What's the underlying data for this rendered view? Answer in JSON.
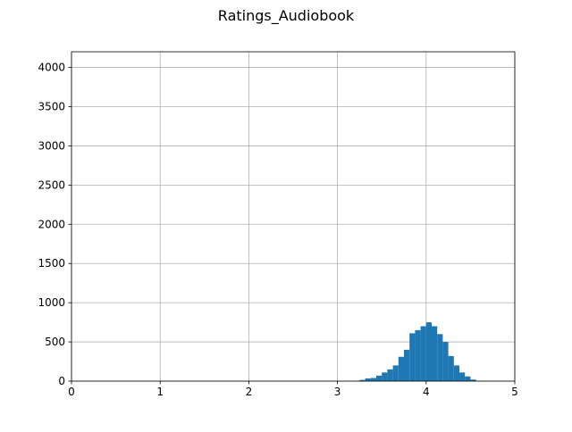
{
  "chart_data": {
    "type": "bar",
    "title": "Ratings_Audiobook",
    "xlabel": "",
    "ylabel": "",
    "xlim": [
      0,
      5
    ],
    "ylim": [
      0,
      4200
    ],
    "x_ticks": [
      0,
      1,
      2,
      3,
      4,
      5
    ],
    "y_ticks": [
      0,
      500,
      1000,
      1500,
      2000,
      2500,
      3000,
      3500,
      4000
    ],
    "grid": true,
    "bar_color": "#1f77b4",
    "bin_width": 0.0625,
    "bin_edges_start": 3.1875,
    "values": [
      5,
      15,
      35,
      40,
      70,
      110,
      150,
      200,
      310,
      400,
      610,
      650,
      700,
      750,
      700,
      600,
      500,
      320,
      200,
      110,
      60,
      20,
      5
    ]
  }
}
